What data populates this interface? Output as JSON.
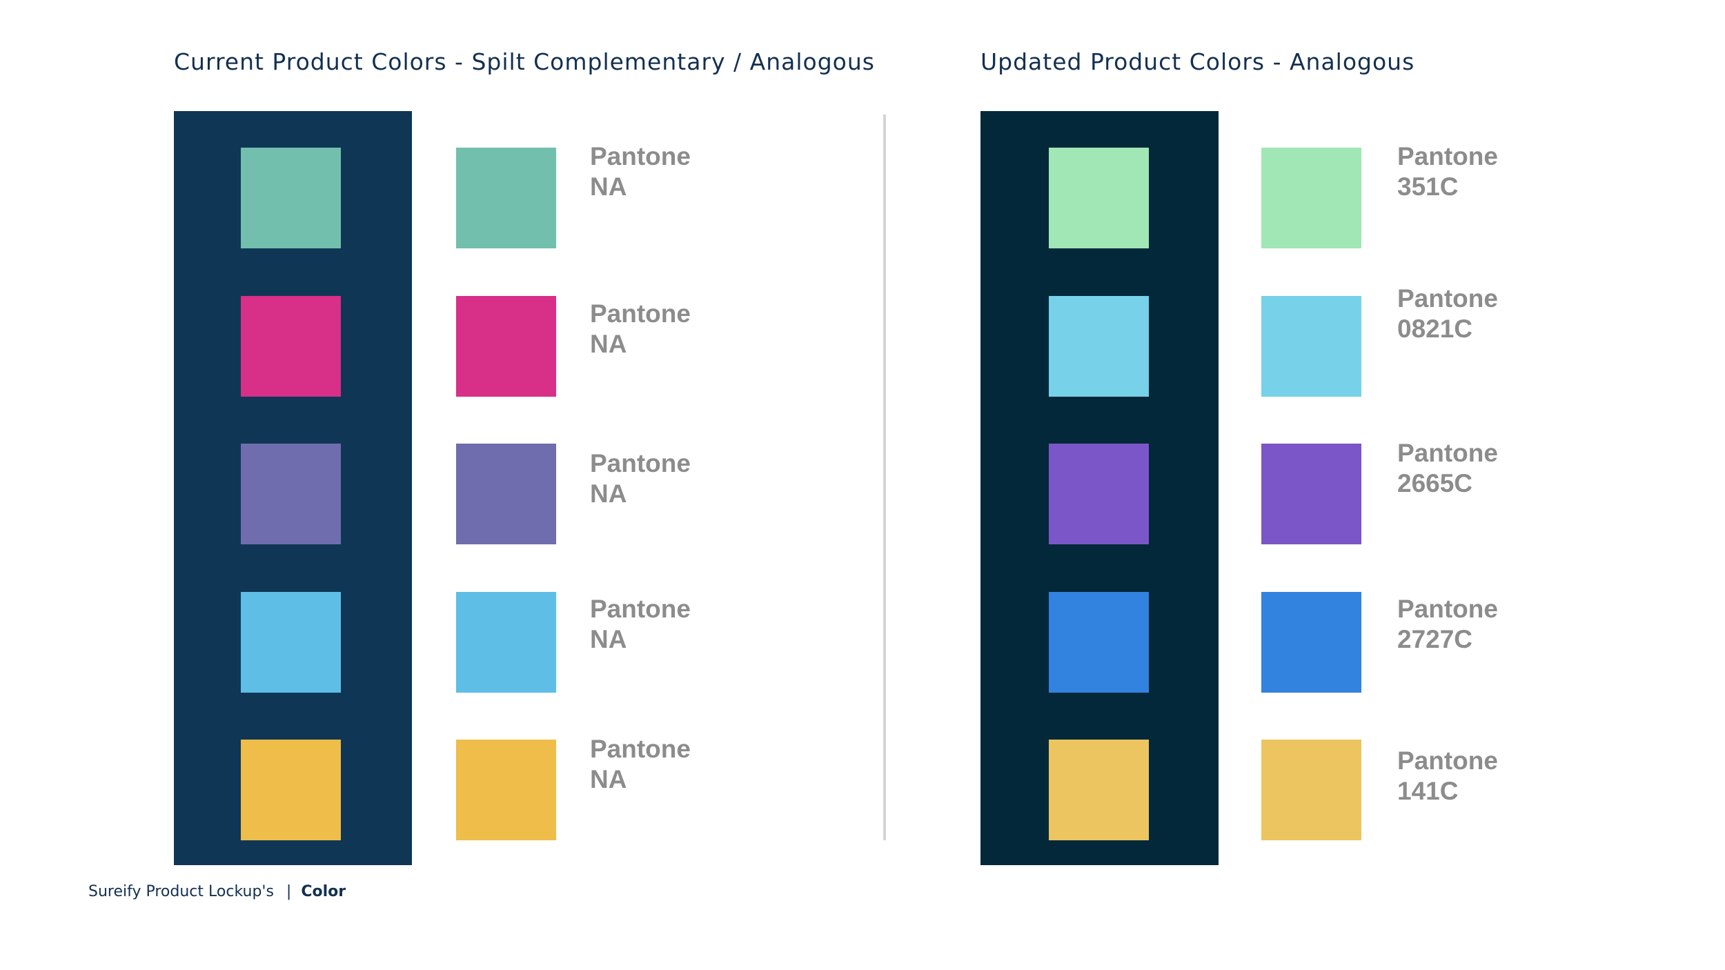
{
  "current": {
    "title": "Current Product Colors - Spilt Complementary / Analogous",
    "panel_color": "#103656",
    "swatches": [
      {
        "color": "#72bfae",
        "line1": "Pantone",
        "line2": "NA"
      },
      {
        "color": "#d82f88",
        "line1": "Pantone",
        "line2": "NA"
      },
      {
        "color": "#6f6dae",
        "line1": "Pantone",
        "line2": "NA"
      },
      {
        "color": "#5ebee6",
        "line1": "Pantone",
        "line2": "NA"
      },
      {
        "color": "#eebd4a",
        "line1": "Pantone",
        "line2": "NA"
      }
    ]
  },
  "updated": {
    "title": "Updated Product Colors - Analogous",
    "panel_color": "#032839",
    "swatches": [
      {
        "color": "#a1e6b5",
        "line1": "Pantone",
        "line2": "351C"
      },
      {
        "color": "#76d1e9",
        "line1": "Pantone",
        "line2": "0821C"
      },
      {
        "color": "#7b56c8",
        "line1": "Pantone",
        "line2": "2665C"
      },
      {
        "color": "#3282e0",
        "line1": "Pantone",
        "line2": "2727C"
      },
      {
        "color": "#ecc560",
        "line1": "Pantone",
        "line2": "141C"
      }
    ]
  },
  "divider_color": "#d4d4d4",
  "text_color": "#13304f",
  "pantone_text_color": "#8c8c8c",
  "footer": {
    "product": "Sureify Product Lockup's",
    "separator": "|",
    "section": "Color"
  }
}
